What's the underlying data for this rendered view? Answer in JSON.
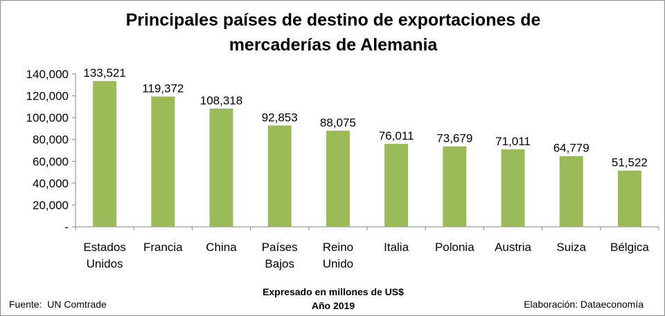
{
  "chart_data": {
    "type": "bar",
    "title_lines": [
      "Principales países de destino de exportaciones de",
      "mercaderías de Alemania"
    ],
    "categories": [
      [
        "Estados",
        "Unidos"
      ],
      [
        "Francia"
      ],
      [
        "China"
      ],
      [
        "Países",
        "Bajos"
      ],
      [
        "Reino",
        "Unido"
      ],
      [
        "Italia"
      ],
      [
        "Polonia"
      ],
      [
        "Austria"
      ],
      [
        "Suiza"
      ],
      [
        "Bélgica"
      ]
    ],
    "values": [
      133521,
      119372,
      108318,
      92853,
      88075,
      76011,
      73679,
      71011,
      64779,
      51522
    ],
    "data_labels": [
      "133,521",
      "119,372",
      "108,318",
      "92,853",
      "88,075",
      "76,011",
      "73,679",
      "71,011",
      "64,779",
      "51,522"
    ],
    "yticks": [
      "-",
      "20,000",
      "40,000",
      "60,000",
      "80,000",
      "100,000",
      "120,000",
      "140,000"
    ],
    "ylim": [
      0,
      140000
    ],
    "bar_color": "#9bbb59",
    "grid": false,
    "legend": "none"
  },
  "subtitle_lines": [
    "Expresado en millones de US$",
    "Año 2019"
  ],
  "source": "Fuente:  UN Comtrade",
  "credit": "Elaboración: Dataeconomía"
}
